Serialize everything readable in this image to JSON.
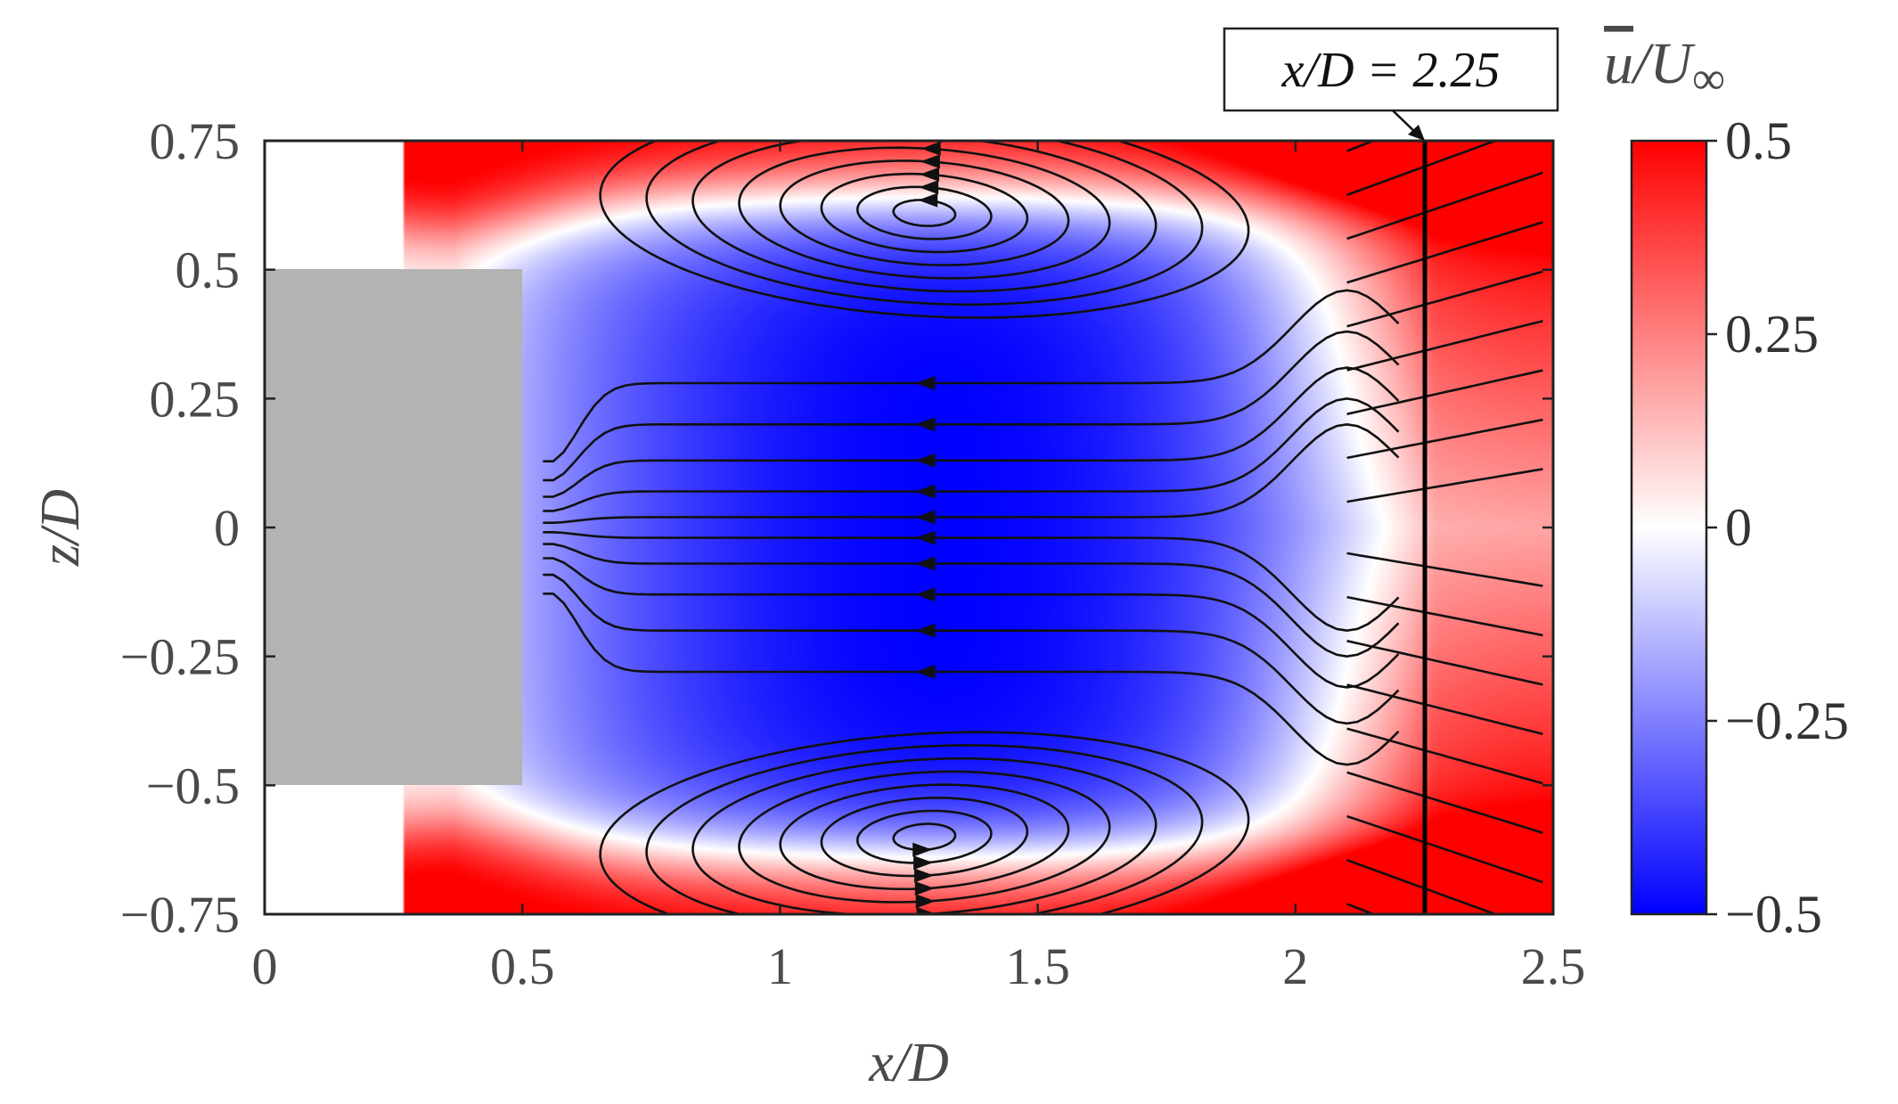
{
  "chart_data": {
    "type": "heatmap",
    "title": "",
    "xlabel": "x/D",
    "ylabel": "z/D",
    "xlim": [
      0,
      2.5
    ],
    "ylim": [
      -0.75,
      0.75
    ],
    "xticks": [
      0,
      0.5,
      1,
      1.5,
      2,
      2.5
    ],
    "xtick_labels": [
      "0",
      "0.5",
      "1",
      "1.5",
      "2",
      "2.5"
    ],
    "yticks": [
      0.75,
      0.5,
      0.25,
      0,
      -0.25,
      -0.5,
      -0.75
    ],
    "ytick_labels": [
      "0.75",
      "0.5",
      "0.25",
      "0",
      "−0.25",
      "−0.5",
      "−0.75"
    ],
    "colorbar": {
      "label": "u̅/U∞",
      "label_main": "u",
      "label_mid": "/U",
      "label_sub": "∞",
      "range": [
        -0.5,
        0.5
      ],
      "ticks": [
        0.5,
        0.25,
        0,
        -0.25,
        -0.5
      ],
      "tick_labels": [
        "0.5",
        "0.25",
        "0",
        "−0.25",
        "−0.5"
      ],
      "colors": {
        "min": "#0000ff",
        "mid": "#ffffff",
        "max": "#ff0000"
      }
    },
    "body": {
      "x": [
        0,
        0.5
      ],
      "z": [
        -0.5,
        0.5
      ],
      "color": "#b3b3b3"
    },
    "wake_field": {
      "min_value": -0.5,
      "vortex_centers": [
        {
          "x": 1.28,
          "z": 0.61
        },
        {
          "x": 1.28,
          "z": -0.6
        }
      ]
    },
    "marker_line": {
      "x": 2.25,
      "label": "x/D = 2.25"
    }
  }
}
